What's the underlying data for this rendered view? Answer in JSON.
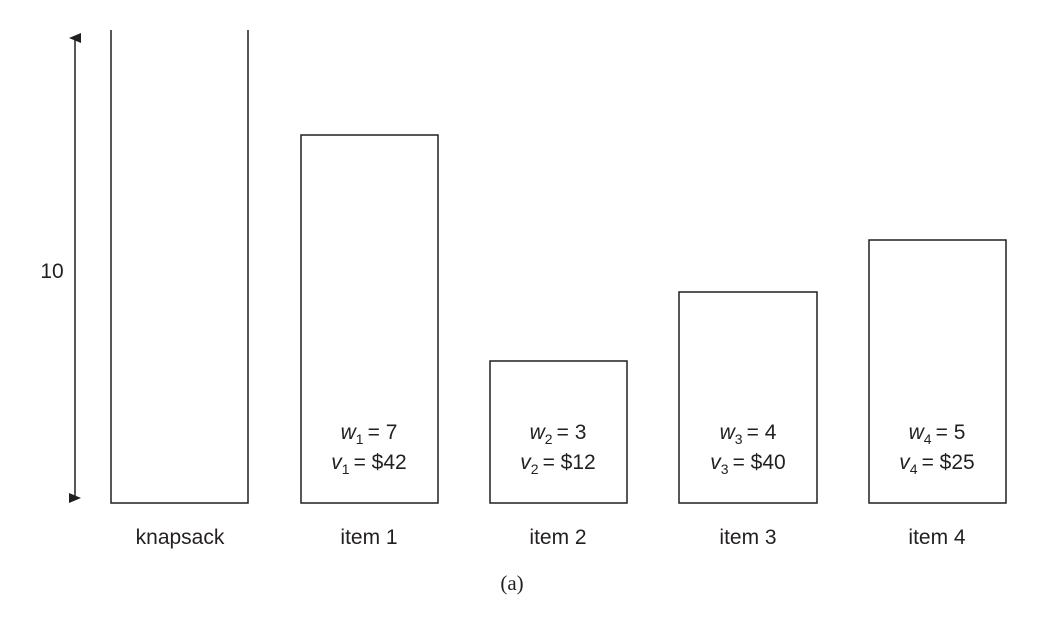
{
  "capacity": {
    "label": "10"
  },
  "knapsack": {
    "label": "knapsack"
  },
  "items": [
    {
      "label": "item 1",
      "w_sym": "w",
      "w_sub": "1",
      "w_value": "= 7",
      "v_sym": "v",
      "v_sub": "1",
      "v_value": "= $42",
      "weight": 7
    },
    {
      "label": "item 2",
      "w_sym": "w",
      "w_sub": "2",
      "w_value": "= 3",
      "v_sym": "v",
      "v_sub": "2",
      "v_value": "= $12",
      "weight": 3
    },
    {
      "label": "item 3",
      "w_sym": "w",
      "w_sub": "3",
      "w_value": "= 4",
      "v_sym": "v",
      "v_sub": "3",
      "v_value": "= $40",
      "weight": 4
    },
    {
      "label": "item 4",
      "w_sym": "w",
      "w_sub": "4",
      "w_value": "= 5",
      "v_sym": "v",
      "v_sub": "4",
      "v_value": "= $25",
      "weight": 5
    }
  ],
  "caption": "(a)",
  "colors": {
    "stroke": "#231f20",
    "text": "#231f20"
  }
}
